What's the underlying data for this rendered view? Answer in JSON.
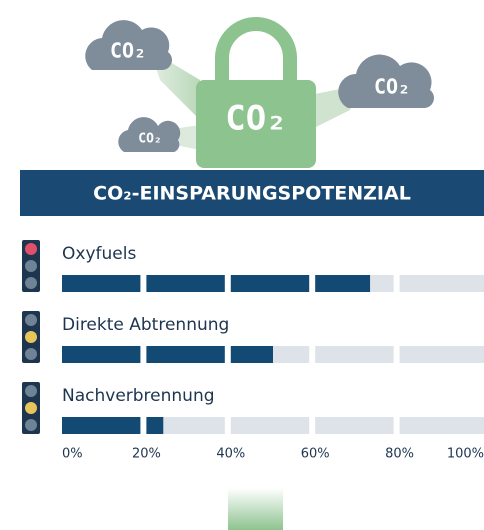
{
  "chart_data": {
    "type": "bar",
    "orientation": "horizontal",
    "title": "CO₂-EINSPARUNGSPOTENZIAL",
    "illustration_labels": [
      "CO₂",
      "CO₂",
      "CO₂",
      "CO₂"
    ],
    "categories": [
      "Oxyfuels",
      "Direkte Abtrennung",
      "Nachverbrennung"
    ],
    "values": [
      73,
      50,
      24
    ],
    "color": "#134a74",
    "track_color": "#dde3e9",
    "indicators": [
      {
        "lit": 0,
        "color": "#e0506a"
      },
      {
        "lit": 1,
        "color": "#e6c65a"
      },
      {
        "lit": 1,
        "color": "#e6c65a"
      }
    ],
    "xlim": [
      0,
      100
    ],
    "xticks": [
      {
        "value": 0,
        "label": "0%"
      },
      {
        "value": 20,
        "label": "20%"
      },
      {
        "value": 40,
        "label": "40%"
      },
      {
        "value": 60,
        "label": "60%"
      },
      {
        "value": 80,
        "label": "80%"
      },
      {
        "value": 100,
        "label": "100%"
      }
    ]
  }
}
